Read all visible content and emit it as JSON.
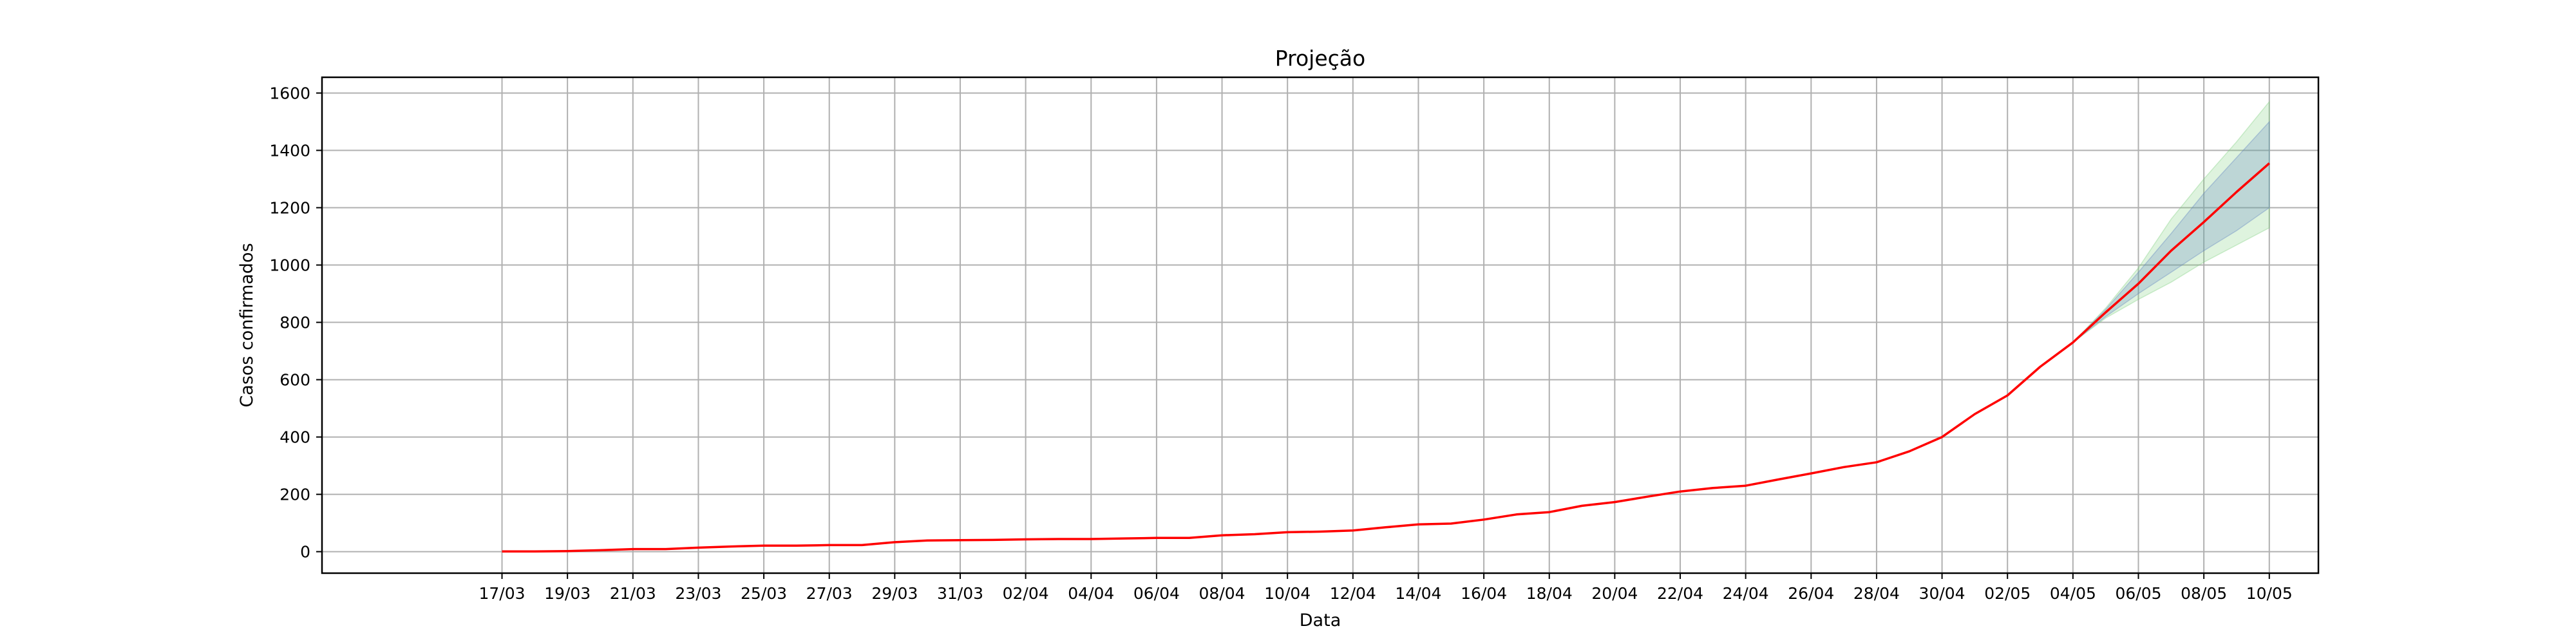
{
  "chart_data": {
    "type": "line",
    "title": "Projeção",
    "xlabel": "Data",
    "ylabel": "Casos confirmados",
    "ylim": [
      -75,
      1655
    ],
    "xlim": [
      -5.5,
      55.5
    ],
    "grid": true,
    "yticks": [
      0,
      200,
      400,
      600,
      800,
      1000,
      1200,
      1400,
      1600
    ],
    "xticks": [
      "17/03",
      "19/03",
      "21/03",
      "23/03",
      "25/03",
      "27/03",
      "29/03",
      "31/03",
      "02/04",
      "04/04",
      "06/04",
      "08/04",
      "10/04",
      "12/04",
      "14/04",
      "16/04",
      "18/04",
      "20/04",
      "22/04",
      "24/04",
      "26/04",
      "28/04",
      "30/04",
      "02/05",
      "04/05",
      "06/05",
      "08/05",
      "10/05"
    ],
    "dates": [
      "17/03",
      "18/03",
      "19/03",
      "20/03",
      "21/03",
      "22/03",
      "23/03",
      "24/03",
      "25/03",
      "26/03",
      "27/03",
      "28/03",
      "29/03",
      "30/03",
      "31/03",
      "01/04",
      "02/04",
      "03/04",
      "04/04",
      "05/04",
      "06/04",
      "07/04",
      "08/04",
      "09/04",
      "10/04",
      "11/04",
      "12/04",
      "13/04",
      "14/04",
      "15/04",
      "16/04",
      "17/04",
      "18/04",
      "19/04",
      "20/04",
      "21/04",
      "22/04",
      "23/04",
      "24/04",
      "25/04",
      "26/04",
      "27/04",
      "28/04",
      "29/04",
      "30/04",
      "01/05",
      "02/05",
      "03/05",
      "04/05",
      "05/05",
      "06/05",
      "07/05",
      "08/05",
      "09/05",
      "10/05"
    ],
    "series": [
      {
        "color": "#ff0000",
        "values": [
          1,
          1,
          2,
          5,
          9,
          9,
          14,
          18,
          21,
          21,
          23,
          23,
          33,
          39,
          40,
          41,
          43,
          44,
          44,
          46,
          48,
          48,
          57,
          61,
          68,
          70,
          74,
          85,
          95,
          98,
          112,
          130,
          138,
          160,
          173,
          192,
          210,
          222,
          230,
          252,
          273,
          295,
          312,
          350,
          400,
          480,
          545,
          645,
          730,
          835,
          935,
          1050,
          1150,
          1255,
          1355
        ]
      }
    ],
    "bands": [
      {
        "color": "#7ccf7c",
        "x_start": 48,
        "lower": [
          730,
          815,
          880,
          940,
          1010,
          1070,
          1130
        ],
        "upper": [
          730,
          850,
          990,
          1160,
          1300,
          1430,
          1570
        ]
      },
      {
        "color": "#5b7fbf",
        "x_start": 48,
        "lower": [
          730,
          820,
          900,
          975,
          1050,
          1120,
          1200
        ],
        "upper": [
          730,
          845,
          975,
          1110,
          1250,
          1375,
          1500
        ]
      }
    ]
  }
}
